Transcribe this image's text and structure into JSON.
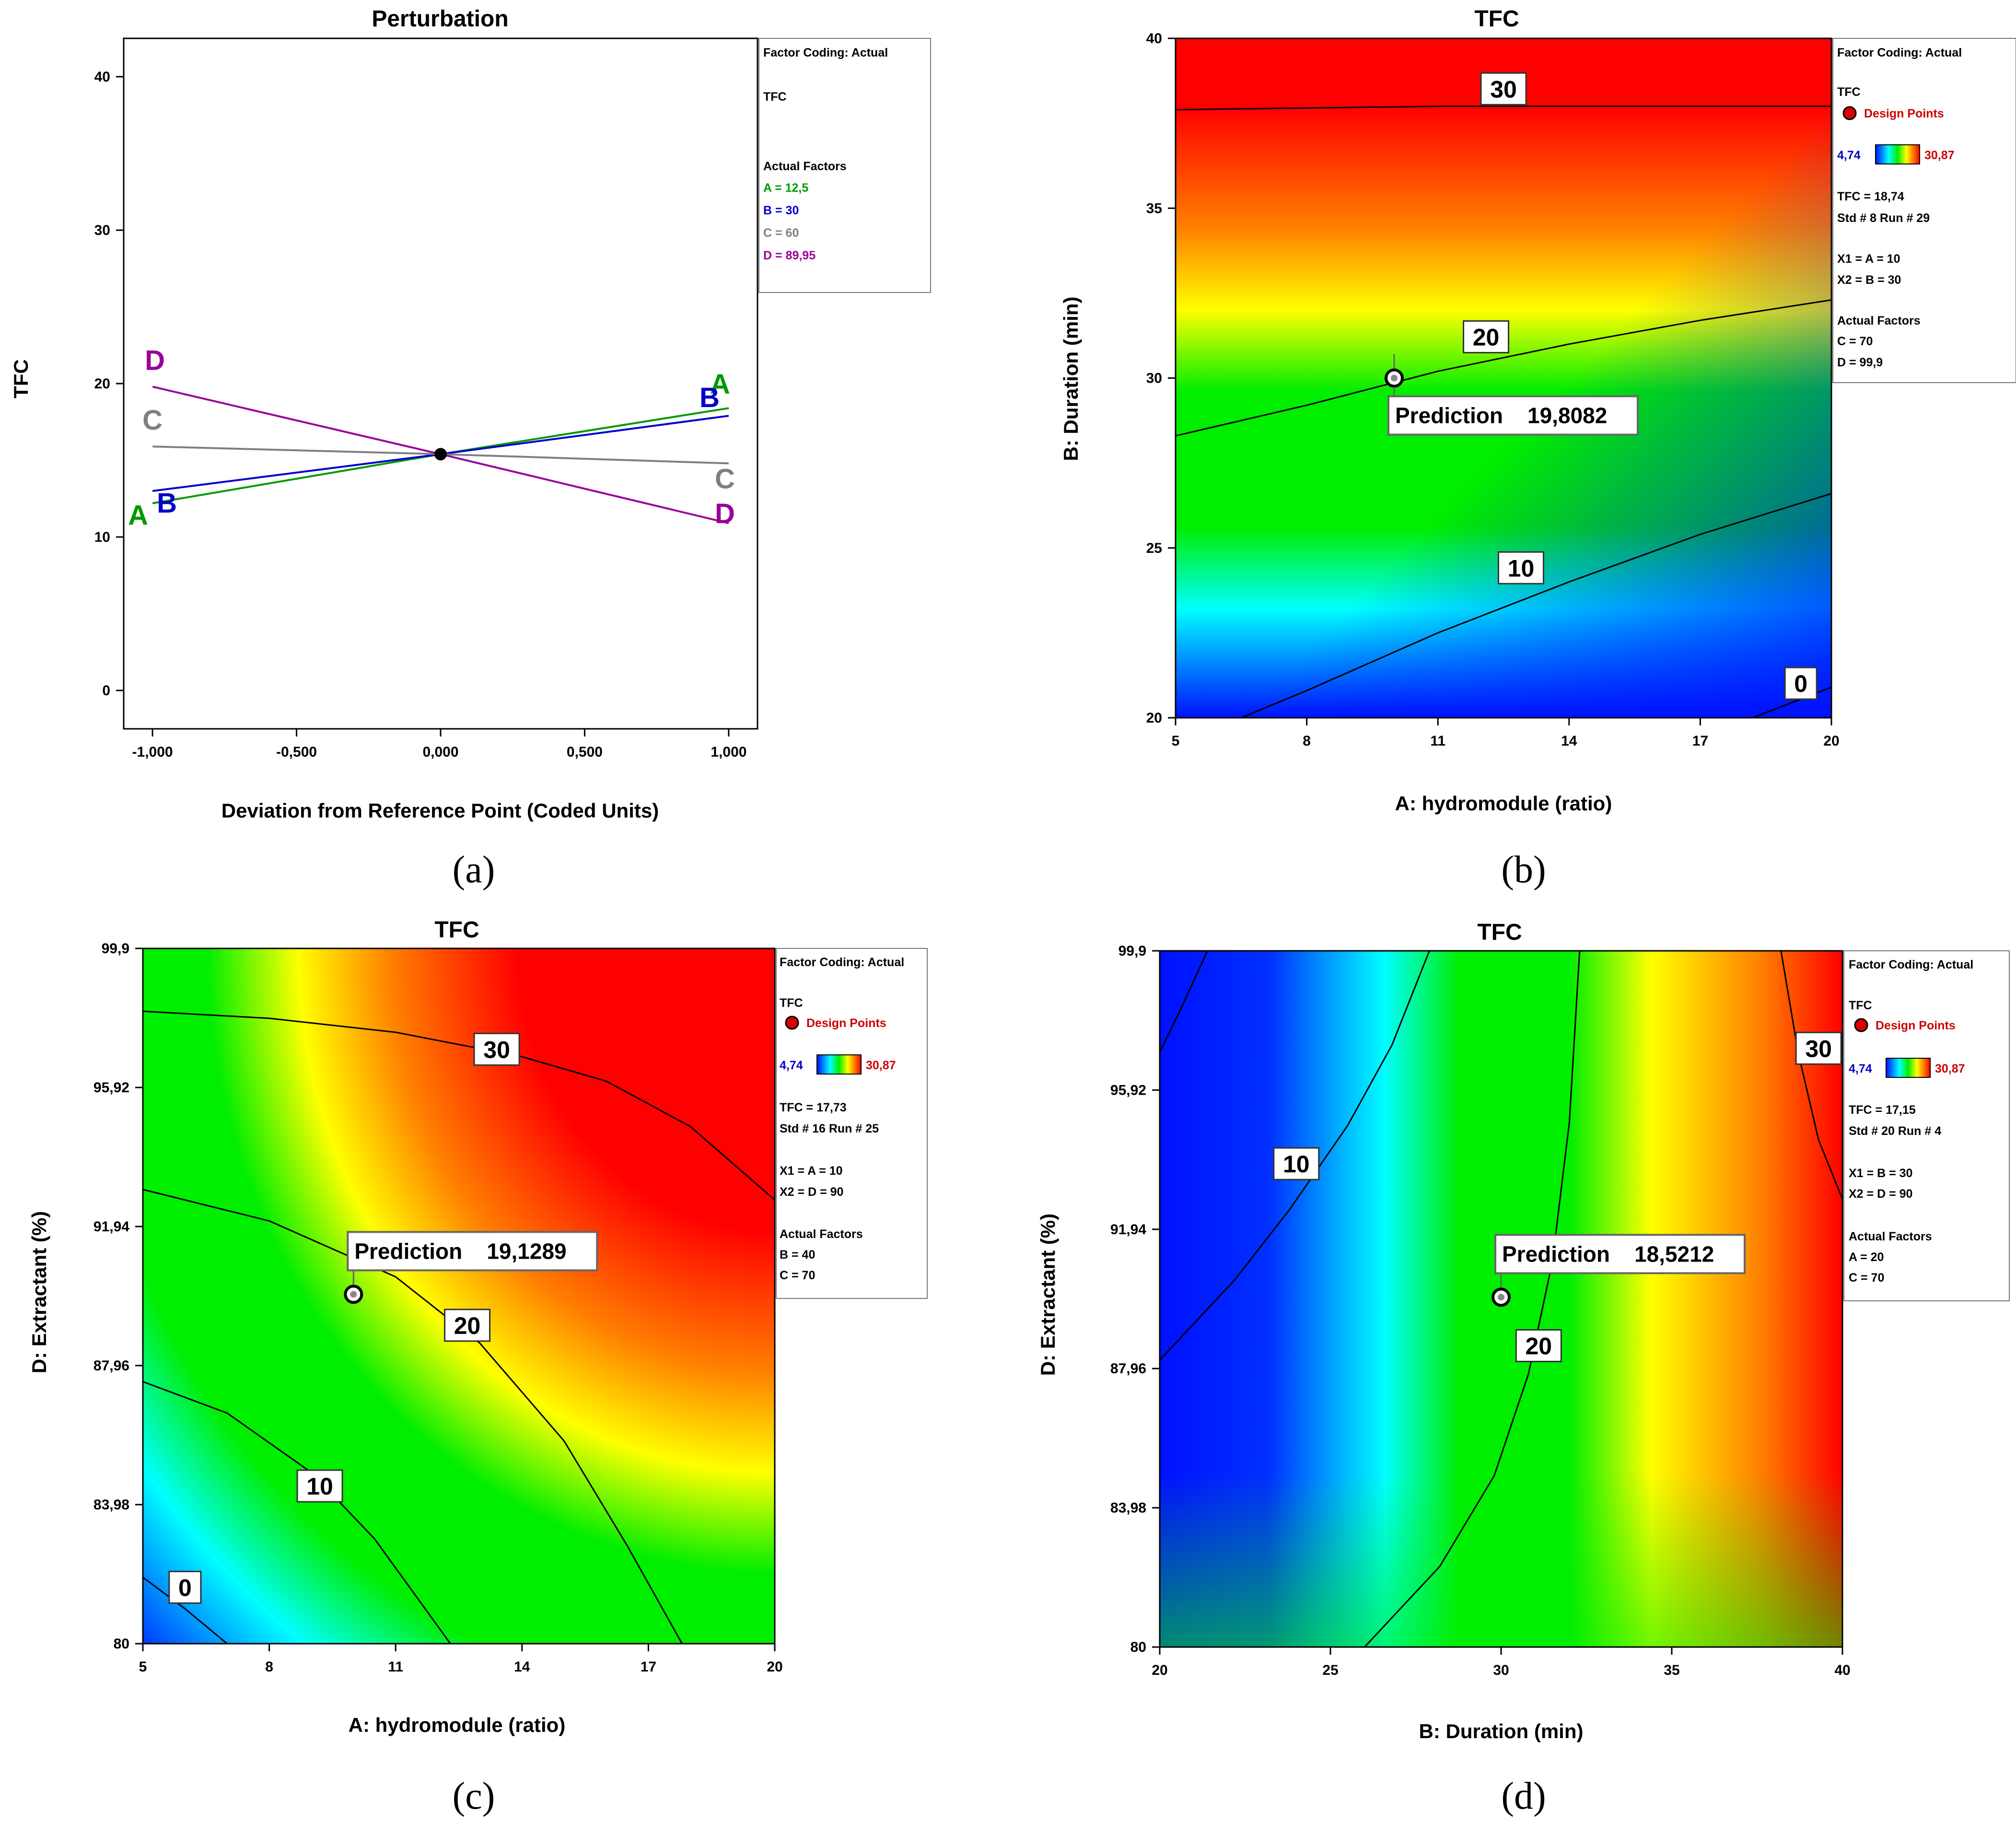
{
  "chart_data": [
    {
      "id": "a",
      "type": "line",
      "panel_label": "(a)",
      "title": "Perturbation",
      "xlabel": "Deviation from Reference Point (Coded Units)",
      "ylabel": "TFC",
      "xlim": [
        -1.1,
        1.1
      ],
      "ylim": [
        -2.5,
        42.5
      ],
      "xticks": [
        -1,
        -0.5,
        0,
        0.5,
        1
      ],
      "xtick_labels": [
        "-1,000",
        "-0,500",
        "0,000",
        "0,500",
        "1,000"
      ],
      "yticks": [
        0,
        10,
        20,
        30,
        40
      ],
      "ytick_labels": [
        "0",
        "10",
        "20",
        "30",
        "40"
      ],
      "reference_point": {
        "x": 0,
        "y": 15.4
      },
      "series": [
        {
          "name": "A",
          "color": "#009900",
          "x": [
            -1,
            0,
            1
          ],
          "y": [
            12.2,
            15.4,
            18.4
          ]
        },
        {
          "name": "B",
          "color": "#0000cc",
          "x": [
            -1,
            0,
            1
          ],
          "y": [
            13.0,
            15.4,
            17.9
          ]
        },
        {
          "name": "C",
          "color": "#7f7f7f",
          "x": [
            -1,
            0,
            1
          ],
          "y": [
            15.9,
            15.4,
            14.8
          ]
        },
        {
          "name": "D",
          "color": "#990099",
          "x": [
            -1,
            0,
            1
          ],
          "y": [
            19.8,
            15.4,
            10.9
          ]
        }
      ],
      "legend": {
        "lines": [
          {
            "text": "Factor Coding: Actual",
            "color": "#000000"
          },
          {
            "text": "TFC",
            "color": "#000000"
          },
          {
            "text": "Actual Factors",
            "color": "#000000"
          },
          {
            "text": "A = 12,5",
            "color": "#009900"
          },
          {
            "text": "B = 30",
            "color": "#0000cc"
          },
          {
            "text": "C = 60",
            "color": "#7f7f7f"
          },
          {
            "text": "D = 89,95",
            "color": "#990099"
          }
        ]
      }
    },
    {
      "id": "b",
      "type": "contour",
      "panel_label": "(b)",
      "title": "TFC",
      "xlabel": "A: hydromodule (ratio)",
      "ylabel": "B: Duration (min)",
      "xlim": [
        5,
        20
      ],
      "ylim": [
        20,
        40
      ],
      "xticks": [
        5,
        8,
        11,
        14,
        17,
        20
      ],
      "xtick_labels": [
        "5",
        "8",
        "11",
        "14",
        "17",
        "20"
      ],
      "yticks": [
        20,
        25,
        30,
        35,
        40
      ],
      "ytick_labels": [
        "20",
        "25",
        "30",
        "35",
        "40"
      ],
      "contours": [
        {
          "level": "30",
          "points": [
            [
              5,
              37.9
            ],
            [
              8,
              37.95
            ],
            [
              11,
              38.0
            ],
            [
              14,
              38.0
            ],
            [
              17,
              38.0
            ],
            [
              20,
              38.0
            ]
          ],
          "label_at": [
            12.5,
            38.5
          ]
        },
        {
          "level": "20",
          "points": [
            [
              5,
              28.3
            ],
            [
              8,
              29.2
            ],
            [
              11,
              30.2
            ],
            [
              14,
              31.0
            ],
            [
              17,
              31.7
            ],
            [
              20,
              32.3
            ]
          ],
          "label_at": [
            12.1,
            31.2
          ]
        },
        {
          "level": "10",
          "points": [
            [
              6.5,
              20
            ],
            [
              8,
              20.8
            ],
            [
              11,
              22.5
            ],
            [
              14,
              24.0
            ],
            [
              17,
              25.4
            ],
            [
              20,
              26.6
            ]
          ],
          "label_at": [
            12.9,
            24.4
          ]
        },
        {
          "level": "0",
          "points": [
            [
              18.2,
              20
            ],
            [
              19.2,
              20.5
            ],
            [
              20,
              20.9
            ]
          ],
          "label_at": [
            19.3,
            21.0
          ]
        }
      ],
      "prediction": {
        "x": 10,
        "y": 30,
        "label": "Prediction",
        "value": "19,8082"
      },
      "legend": {
        "lines": [
          {
            "text": "Factor Coding: Actual",
            "color": "#000000"
          },
          {
            "text": "TFC",
            "color": "#000000"
          },
          {
            "text": "Design Points",
            "color": "#cc0000"
          },
          {
            "text": "4,74",
            "color": "#0000cc"
          },
          {
            "text": "30,87",
            "color": "#cc0000"
          },
          {
            "text": "TFC = 18,74",
            "color": "#000000"
          },
          {
            "text": "Std # 8 Run # 29",
            "color": "#000000"
          },
          {
            "text": "X1 = A = 10",
            "color": "#000000"
          },
          {
            "text": "X2 = B = 30",
            "color": "#000000"
          },
          {
            "text": "Actual Factors",
            "color": "#000000"
          },
          {
            "text": "C = 70",
            "color": "#000000"
          },
          {
            "text": "D = 99,9",
            "color": "#000000"
          }
        ]
      }
    },
    {
      "id": "c",
      "type": "contour",
      "panel_label": "(c)",
      "title": "TFC",
      "xlabel": "A: hydromodule (ratio)",
      "ylabel": "D: Extractant (%)",
      "xlim": [
        5,
        20
      ],
      "ylim": [
        80,
        99.9
      ],
      "xticks": [
        5,
        8,
        11,
        14,
        17,
        20
      ],
      "xtick_labels": [
        "5",
        "8",
        "11",
        "14",
        "17",
        "20"
      ],
      "yticks": [
        80,
        83.98,
        87.96,
        91.94,
        95.92,
        99.9
      ],
      "ytick_labels": [
        "80",
        "83,98",
        "87,96",
        "91,94",
        "95,92",
        "99,9"
      ],
      "contours": [
        {
          "level": "30",
          "points": [
            [
              5,
              98.1
            ],
            [
              8,
              97.9
            ],
            [
              11,
              97.5
            ],
            [
              14,
              96.8
            ],
            [
              16,
              96.1
            ],
            [
              18,
              94.8
            ],
            [
              20,
              92.7
            ]
          ],
          "label_at": [
            13.4,
            97.0
          ]
        },
        {
          "level": "20",
          "points": [
            [
              5,
              93.0
            ],
            [
              8,
              92.1
            ],
            [
              11,
              90.5
            ],
            [
              13,
              88.6
            ],
            [
              15,
              85.8
            ],
            [
              16.5,
              82.8
            ],
            [
              17.8,
              80
            ]
          ],
          "label_at": [
            12.7,
            89.1
          ]
        },
        {
          "level": "10",
          "points": [
            [
              5,
              87.5
            ],
            [
              7,
              86.6
            ],
            [
              9,
              84.9
            ],
            [
              10.5,
              83.0
            ],
            [
              12.3,
              80
            ]
          ],
          "label_at": [
            9.2,
            84.5
          ]
        },
        {
          "level": "0",
          "points": [
            [
              5,
              81.9
            ],
            [
              6,
              81.0
            ],
            [
              7,
              80
            ]
          ],
          "label_at": [
            6.0,
            81.6
          ]
        }
      ],
      "prediction": {
        "x": 10,
        "y": 90,
        "label": "Prediction",
        "value": "19,1289"
      },
      "legend": {
        "lines": [
          {
            "text": "Factor Coding: Actual",
            "color": "#000000"
          },
          {
            "text": "TFC",
            "color": "#000000"
          },
          {
            "text": "Design Points",
            "color": "#cc0000"
          },
          {
            "text": "4,74",
            "color": "#0000cc"
          },
          {
            "text": "30,87",
            "color": "#cc0000"
          },
          {
            "text": "TFC = 17,73",
            "color": "#000000"
          },
          {
            "text": "Std # 16 Run # 25",
            "color": "#000000"
          },
          {
            "text": "X1 = A = 10",
            "color": "#000000"
          },
          {
            "text": "X2 = D = 90",
            "color": "#000000"
          },
          {
            "text": "Actual Factors",
            "color": "#000000"
          },
          {
            "text": "B = 40",
            "color": "#000000"
          },
          {
            "text": "C = 70",
            "color": "#000000"
          }
        ]
      }
    },
    {
      "id": "d",
      "type": "contour",
      "panel_label": "(d)",
      "title": "TFC",
      "xlabel": "B: Duration (min)",
      "ylabel": "D: Extractant (%)",
      "xlim": [
        20,
        40
      ],
      "ylim": [
        80,
        99.9
      ],
      "xticks": [
        20,
        25,
        30,
        35,
        40
      ],
      "xtick_labels": [
        "20",
        "25",
        "30",
        "35",
        "40"
      ],
      "yticks": [
        80,
        83.98,
        87.96,
        91.94,
        95.92,
        99.9
      ],
      "ytick_labels": [
        "80",
        "83,98",
        "87,96",
        "91,94",
        "95,92",
        "99,9"
      ],
      "contours": [
        {
          "level": "30",
          "points": [
            [
              38.2,
              99.9
            ],
            [
              38.7,
              97.0
            ],
            [
              39.3,
              94.5
            ],
            [
              40,
              92.8
            ]
          ],
          "label_at": [
            39.3,
            97.1
          ]
        },
        {
          "level": "20",
          "points": [
            [
              26.0,
              80
            ],
            [
              28.2,
              82.3
            ],
            [
              29.8,
              84.9
            ],
            [
              30.8,
              87.8
            ],
            [
              31.5,
              91.0
            ],
            [
              32.0,
              95.0
            ],
            [
              32.3,
              99.9
            ]
          ],
          "label_at": [
            31.1,
            88.6
          ]
        },
        {
          "level": "10",
          "points": [
            [
              20,
              88.2
            ],
            [
              22.2,
              90.5
            ],
            [
              23.8,
              92.5
            ],
            [
              25.5,
              94.9
            ],
            [
              26.8,
              97.2
            ],
            [
              27.9,
              99.9
            ]
          ],
          "label_at": [
            24.0,
            93.8
          ]
        },
        {
          "level": "",
          "points": [
            [
              20,
              97.0
            ],
            [
              20.6,
              98.2
            ],
            [
              21.4,
              99.9
            ]
          ],
          "label_at": null
        }
      ],
      "prediction": {
        "x": 30,
        "y": 90,
        "label": "Prediction",
        "value": "18,5212"
      },
      "legend": {
        "lines": [
          {
            "text": "Factor Coding: Actual",
            "color": "#000000"
          },
          {
            "text": "TFC",
            "color": "#000000"
          },
          {
            "text": "Design Points",
            "color": "#cc0000"
          },
          {
            "text": "4,74",
            "color": "#0000cc"
          },
          {
            "text": "30,87",
            "color": "#cc0000"
          },
          {
            "text": "TFC = 17,15",
            "color": "#000000"
          },
          {
            "text": "Std # 20 Run # 4",
            "color": "#000000"
          },
          {
            "text": "X1 = B = 30",
            "color": "#000000"
          },
          {
            "text": "X2 = D = 90",
            "color": "#000000"
          },
          {
            "text": "Actual Factors",
            "color": "#000000"
          },
          {
            "text": "A = 20",
            "color": "#000000"
          },
          {
            "text": "C = 70",
            "color": "#000000"
          }
        ]
      }
    }
  ]
}
